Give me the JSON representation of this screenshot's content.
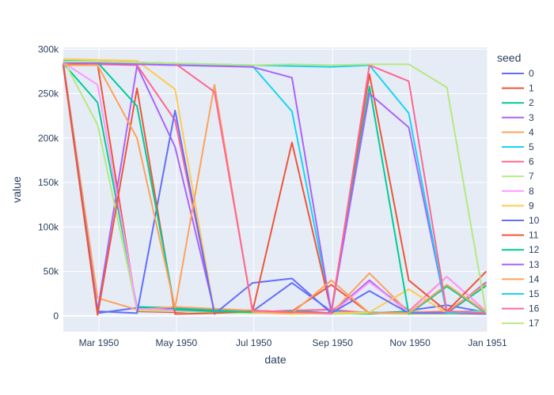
{
  "chart_data": {
    "type": "line",
    "xlabel": "date",
    "ylabel": "value",
    "legend_title": "seed",
    "legend_position": "right",
    "grid": true,
    "xlim": [
      "1950-02-01",
      "1951-01-01"
    ],
    "ylim": [
      -18000,
      302000
    ],
    "x_ticks": [
      {
        "date": "1950-03-01",
        "label": "Mar 1950"
      },
      {
        "date": "1950-05-01",
        "label": "May 1950"
      },
      {
        "date": "1950-07-01",
        "label": "Jul 1950"
      },
      {
        "date": "1950-09-01",
        "label": "Sep 1950"
      },
      {
        "date": "1950-11-01",
        "label": "Nov 1950"
      },
      {
        "date": "1951-01-01",
        "label": "Jan 1951"
      }
    ],
    "y_ticks": [
      {
        "value": 0,
        "label": "0"
      },
      {
        "value": 50000,
        "label": "50k"
      },
      {
        "value": 100000,
        "label": "100k"
      },
      {
        "value": 150000,
        "label": "150k"
      },
      {
        "value": 200000,
        "label": "200k"
      },
      {
        "value": 250000,
        "label": "250k"
      },
      {
        "value": 300000,
        "label": "300k"
      }
    ],
    "x": [
      "1950-02-01",
      "1950-02-28",
      "1950-03-31",
      "1950-04-30",
      "1950-05-31",
      "1950-06-30",
      "1950-07-31",
      "1950-08-31",
      "1950-09-30",
      "1950-10-31",
      "1950-11-30",
      "1950-12-31"
    ],
    "series": [
      {
        "name": "0",
        "color": "#636efa",
        "values": [
          284000,
          3000,
          9000,
          8000,
          6000,
          5000,
          37000,
          5000,
          38000,
          6000,
          12000,
          4000
        ]
      },
      {
        "name": "1",
        "color": "#EF553B",
        "values": [
          283000,
          283000,
          5000,
          4000,
          6000,
          4000,
          5000,
          35000,
          3000,
          5000,
          44000,
          5000
        ]
      },
      {
        "name": "2",
        "color": "#00cc96",
        "values": [
          284000,
          240000,
          10000,
          9000,
          7000,
          6000,
          4000,
          3000,
          2000,
          5000,
          3000,
          34000
        ]
      },
      {
        "name": "3",
        "color": "#ab63fa",
        "values": [
          282000,
          6000,
          281000,
          190000,
          5000,
          4000,
          6000,
          3000,
          40000,
          3000,
          3000,
          38000
        ]
      },
      {
        "name": "4",
        "color": "#FFA15A",
        "values": [
          285000,
          20000,
          7000,
          10000,
          8000,
          6000,
          4000,
          3000,
          48000,
          4000,
          5000,
          36000
        ]
      },
      {
        "name": "5",
        "color": "#19d3f3",
        "values": [
          286000,
          285000,
          284000,
          283000,
          282000,
          281000,
          230000,
          5000,
          4000,
          3000,
          4000,
          6000
        ]
      },
      {
        "name": "6",
        "color": "#FF6692",
        "values": [
          287000,
          283000,
          282000,
          220000,
          5000,
          4000,
          6000,
          7000,
          3000,
          3000,
          5000,
          4000
        ]
      },
      {
        "name": "7",
        "color": "#B6E880",
        "values": [
          288000,
          215000,
          6000,
          5000,
          4000,
          3000,
          5000,
          2000,
          3000,
          2000,
          2000,
          2000
        ]
      },
      {
        "name": "8",
        "color": "#FF97FF",
        "values": [
          285000,
          260000,
          8000,
          6000,
          5000,
          4000,
          3000,
          2000,
          38000,
          4000,
          44000,
          5000
        ]
      },
      {
        "name": "9",
        "color": "#FECB52",
        "values": [
          289000,
          288000,
          287000,
          255000,
          3000,
          4000,
          2000,
          3000,
          4000,
          30000,
          3000,
          5000
        ]
      },
      {
        "name": "10",
        "color": "#636efa",
        "values": [
          283000,
          5000,
          3000,
          231000,
          2000,
          37000,
          42000,
          3000,
          28000,
          3000,
          3000,
          2000
        ]
      },
      {
        "name": "11",
        "color": "#EF553B",
        "values": [
          281000,
          1000,
          256000,
          2000,
          3000,
          5000,
          195000,
          5000,
          272000,
          40000,
          5000,
          50000
        ]
      },
      {
        "name": "12",
        "color": "#00cc96",
        "values": [
          286000,
          285000,
          236000,
          7000,
          5000,
          4000,
          5000,
          3000,
          258000,
          2000,
          33000,
          3000
        ]
      },
      {
        "name": "13",
        "color": "#ab63fa",
        "values": [
          285000,
          284000,
          283000,
          282000,
          281000,
          280000,
          268000,
          4000,
          250000,
          212000,
          3000,
          3000
        ]
      },
      {
        "name": "14",
        "color": "#FFA15A",
        "values": [
          282000,
          282000,
          200000,
          9000,
          260000,
          4000,
          3000,
          40000,
          3000,
          3000,
          35000,
          4000
        ]
      },
      {
        "name": "15",
        "color": "#19d3f3",
        "values": [
          287000,
          286000,
          285000,
          284000,
          283000,
          282000,
          281000,
          280000,
          282000,
          228000,
          3000,
          4000
        ]
      },
      {
        "name": "16",
        "color": "#FF6692",
        "values": [
          286000,
          286000,
          285000,
          284000,
          252000,
          6000,
          4000,
          3000,
          282000,
          264000,
          5000,
          3000
        ]
      },
      {
        "name": "17",
        "color": "#B6E880",
        "values": [
          286000,
          286000,
          285000,
          284000,
          283000,
          282000,
          283000,
          282000,
          283000,
          283000,
          257000,
          3000
        ]
      }
    ]
  }
}
